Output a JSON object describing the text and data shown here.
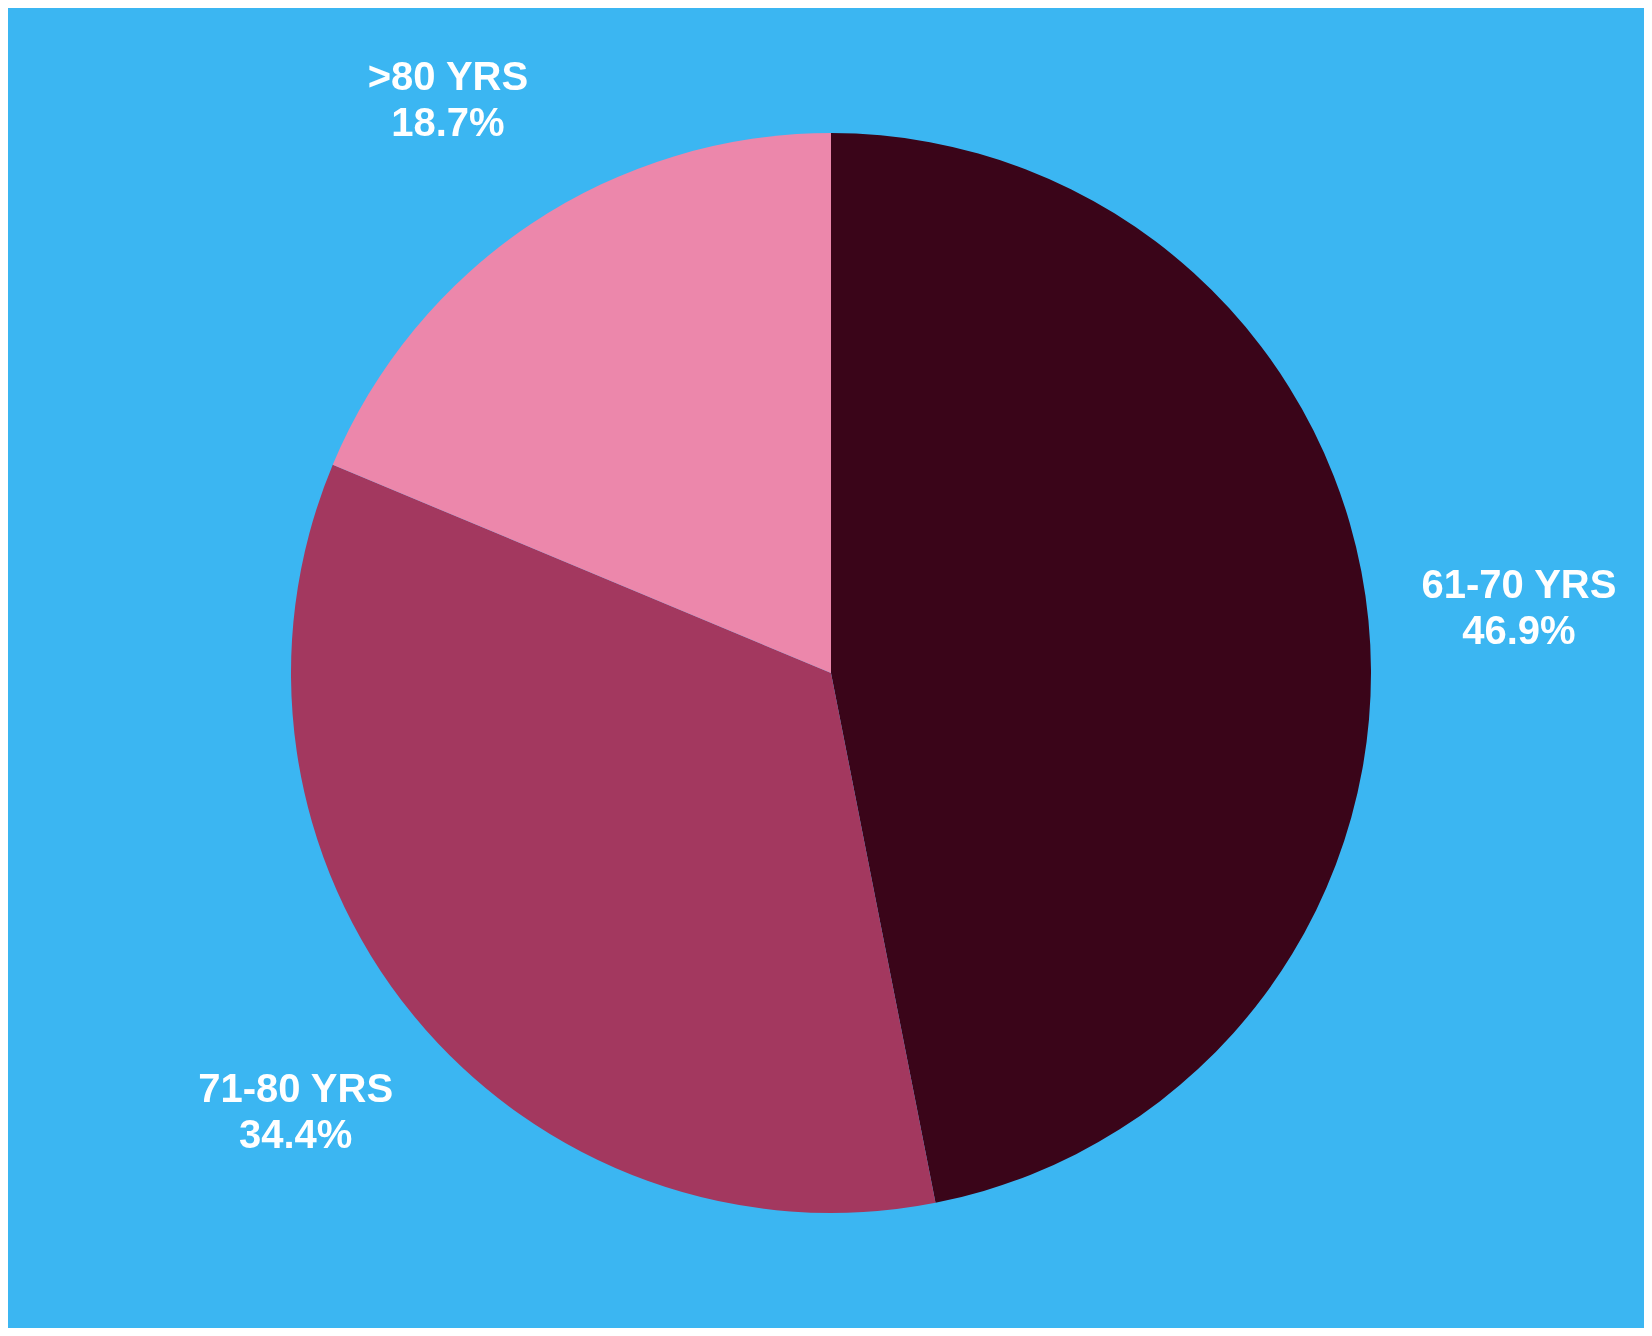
{
  "chart_data": {
    "type": "pie",
    "categories": [
      "61-70 YRS",
      "71-80 YRS",
      ">80 YRS"
    ],
    "values": [
      46.9,
      34.4,
      18.7
    ],
    "colors": [
      "#3a0519",
      "#a3385f",
      "#ec87ab"
    ],
    "value_labels": [
      "46.9%",
      "34.4%",
      "18.7%"
    ],
    "legend": false
  }
}
